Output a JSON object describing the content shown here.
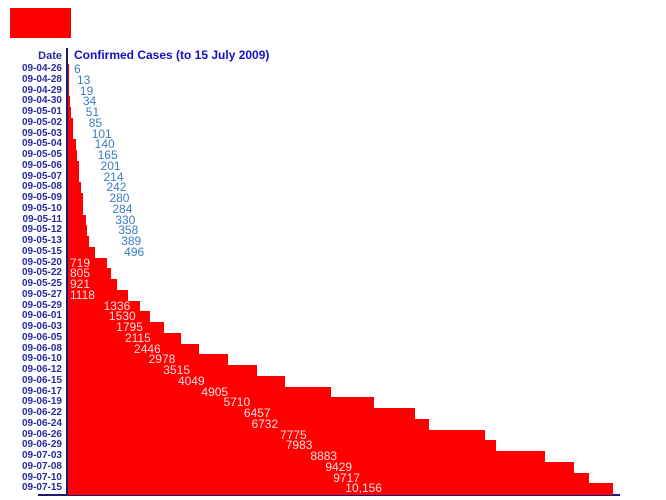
{
  "date_header": "Date",
  "overlay": {
    "description": "solid red rectangle patch in top-left corner",
    "color": "#FF0000"
  },
  "colors": {
    "background": "#FFFFFF",
    "bar": "#FF0000",
    "title_text": "#1111C9",
    "date_text": "#2A2AA0",
    "small_value_text": "#3B7CC4",
    "large_value_text": "#FFDFDF",
    "axis": "#1A1A70",
    "patch": "#FF0000"
  },
  "chart_data": {
    "type": "bar",
    "orientation": "horizontal",
    "title": "Confirmed Cases (to 15 July 2009)",
    "xlabel": "",
    "ylabel": "Date",
    "x_range": [
      0,
      10156
    ],
    "grid": false,
    "legend": null,
    "categories": [
      "09-04-26",
      "09-04-28",
      "09-04-29",
      "09-04-30",
      "09-05-01",
      "09-05-02",
      "09-05-03",
      "09-05-04",
      "09-05-05",
      "09-05-06",
      "09-05-07",
      "09-05-08",
      "09-05-09",
      "09-05-10",
      "09-05-11",
      "09-05-12",
      "09-05-13",
      "09-05-15",
      "09-05-20",
      "09-05-22",
      "09-05-25",
      "09-05-27",
      "09-05-29",
      "09-06-01",
      "09-06-03",
      "09-06-05",
      "09-06-08",
      "09-06-10",
      "09-06-12",
      "09-06-15",
      "09-06-17",
      "09-06-19",
      "09-06-22",
      "09-06-24",
      "09-06-26",
      "09-06-29",
      "09-07-03",
      "09-07-08",
      "09-07-10",
      "09-07-15"
    ],
    "values": [
      6,
      13,
      19,
      34,
      51,
      85,
      101,
      140,
      165,
      201,
      214,
      242,
      280,
      284,
      330,
      358,
      389,
      496,
      719,
      805,
      921,
      1118,
      1336,
      1530,
      1795,
      2115,
      2446,
      2978,
      3515,
      4049,
      4905,
      5710,
      6457,
      6732,
      7775,
      7983,
      8883,
      9429,
      9717,
      10156
    ],
    "value_labels": [
      "6",
      "13",
      "19",
      "34",
      "51",
      "85",
      "101",
      "140",
      "165",
      "201",
      "214",
      "242",
      "280",
      "284",
      "330",
      "358",
      "389",
      "496",
      "719",
      "805",
      "921",
      "1118",
      "1336",
      "1530",
      "1795",
      "2115",
      "2446",
      "2978",
      "3515",
      "4049",
      "4905",
      "5710",
      "6457",
      "6732",
      "7775",
      "7983",
      "8883",
      "9429",
      "9717",
      "10,156"
    ]
  }
}
